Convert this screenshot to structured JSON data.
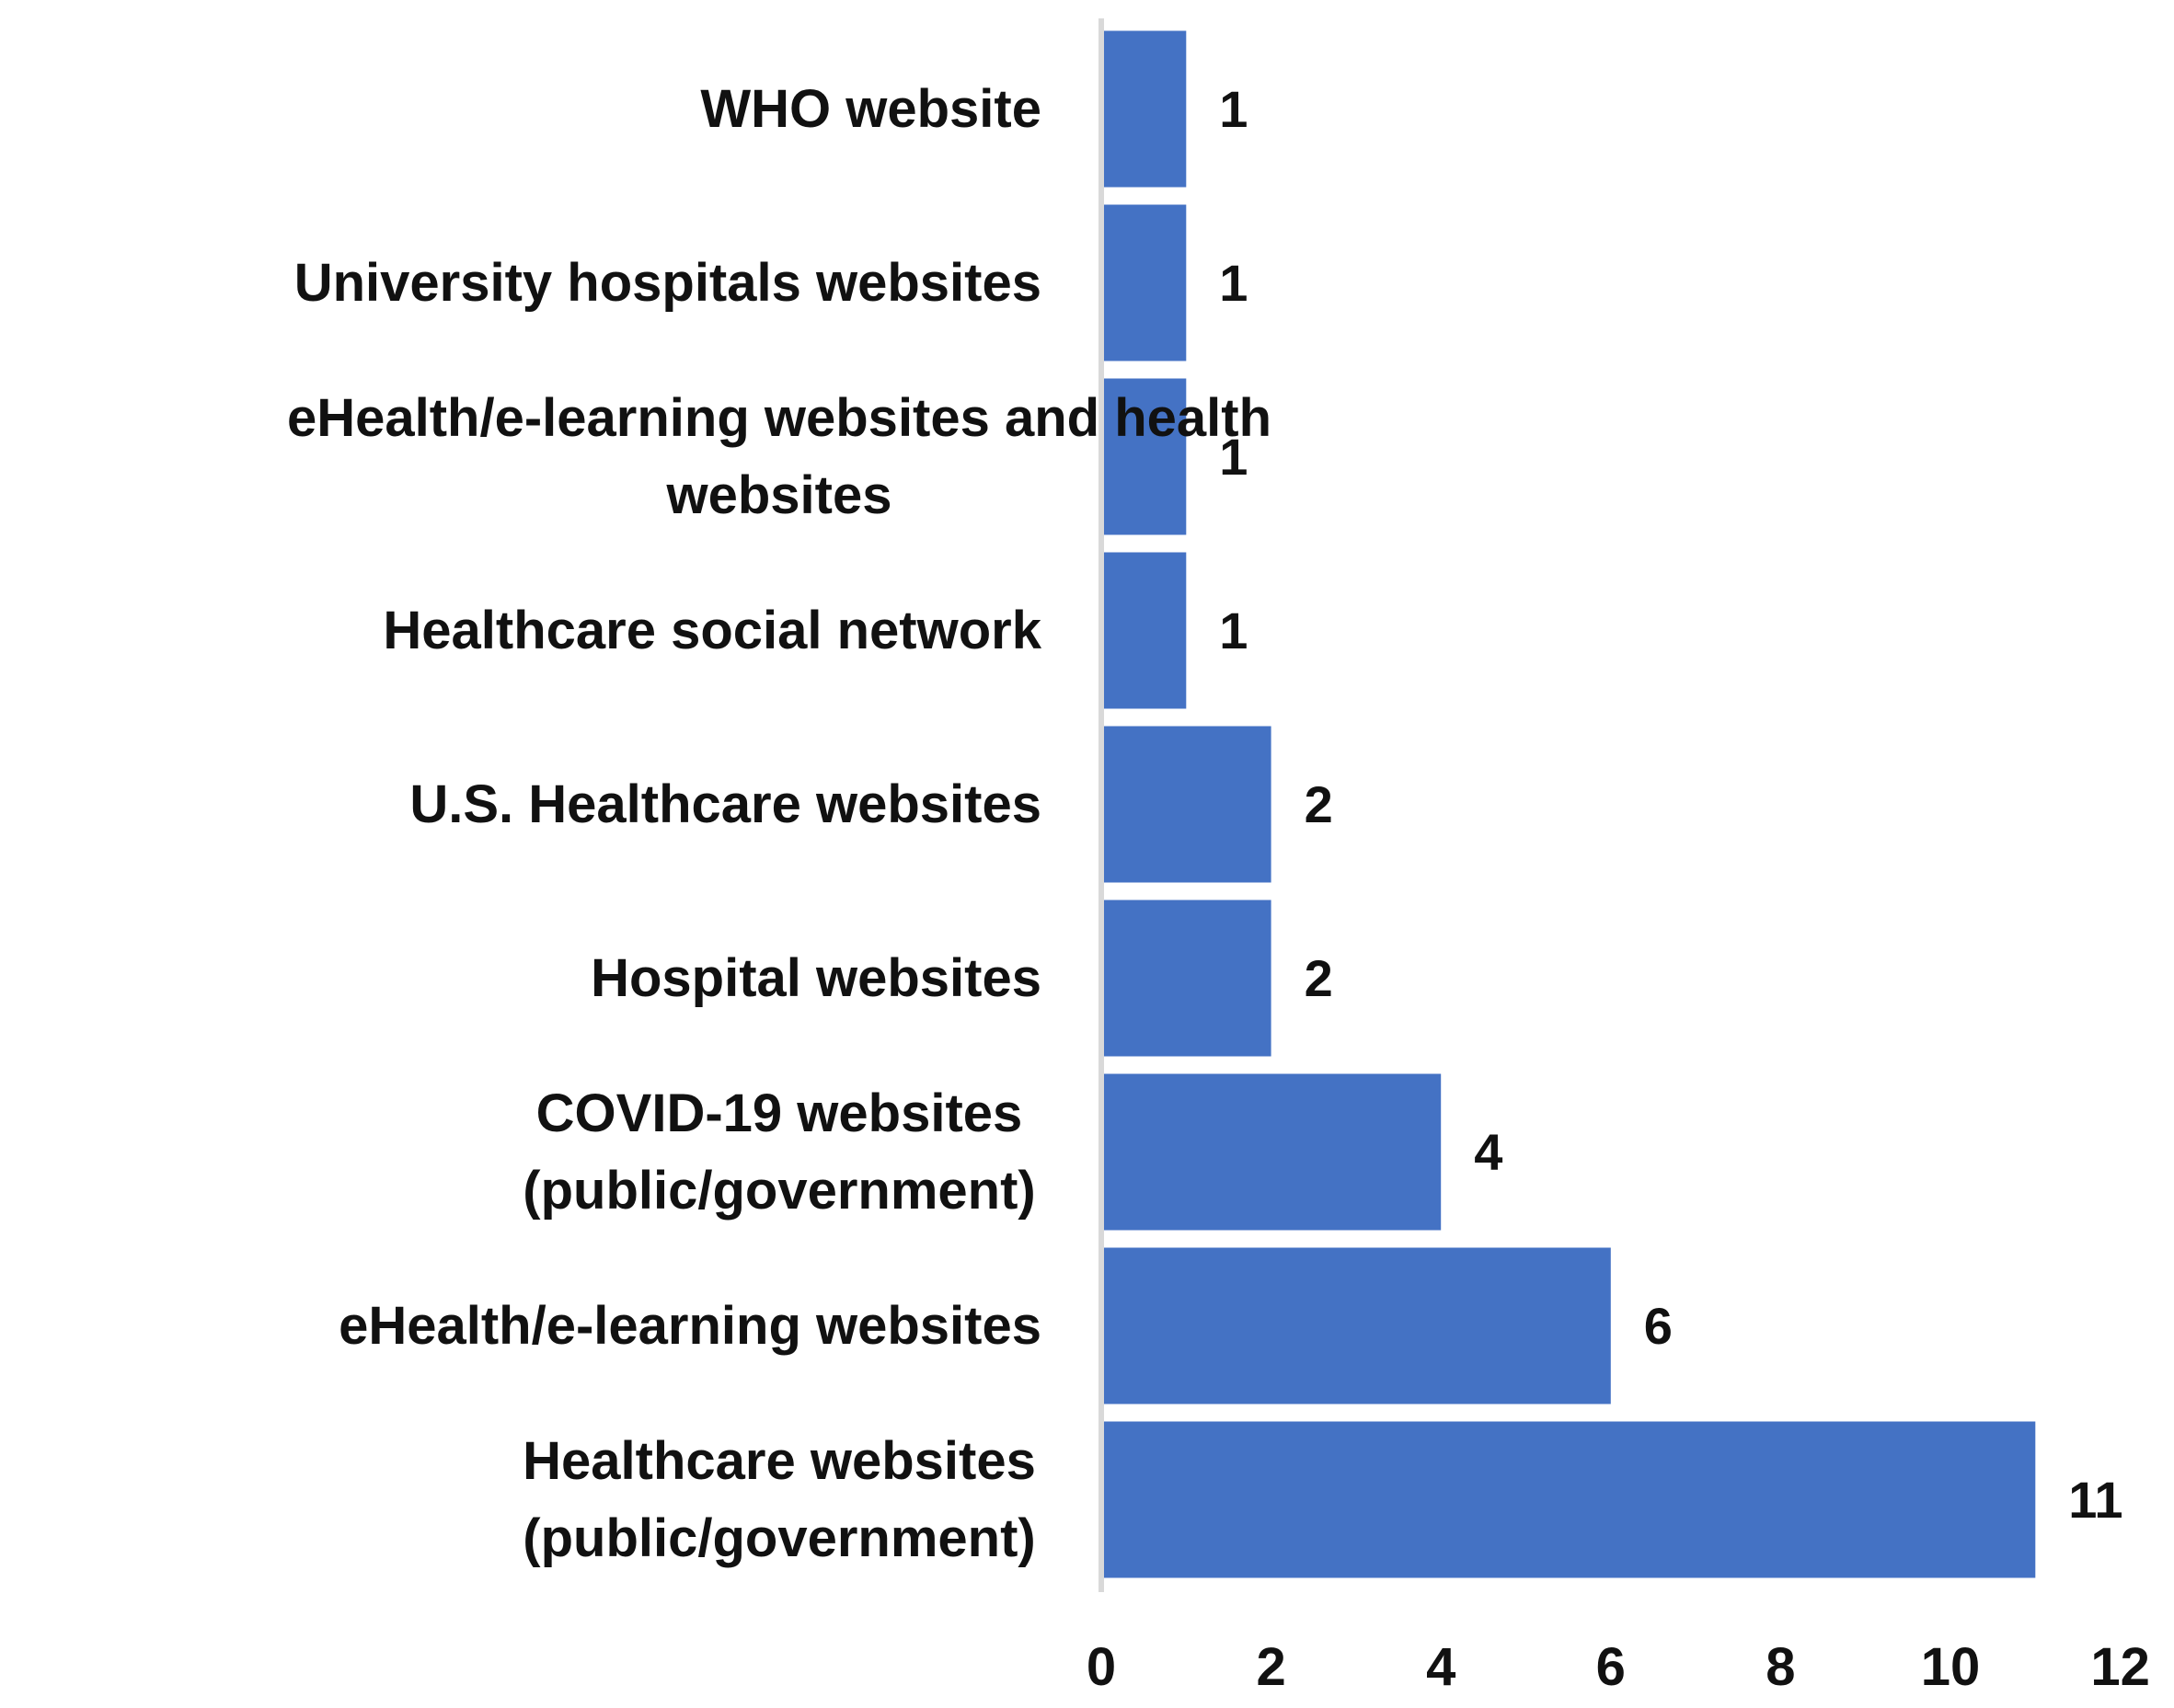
{
  "chart_data": {
    "type": "bar",
    "orientation": "horizontal",
    "title": "",
    "xlabel": "",
    "ylabel": "",
    "categories": [
      [
        "Healthcare websites",
        "(public/government)"
      ],
      [
        "eHealth/e-learning websites"
      ],
      [
        "COVID-19 websites",
        "(public/government)"
      ],
      [
        "Hospital websites"
      ],
      [
        "U.S. Healthcare websites"
      ],
      [
        "Healthcare social network"
      ],
      [
        "eHealth/e-learning websites and health",
        "websites"
      ],
      [
        "University hospitals websites"
      ],
      [
        "WHO website"
      ]
    ],
    "values": [
      11,
      6,
      4,
      2,
      2,
      1,
      1,
      1,
      1
    ],
    "data_labels": [
      "11",
      "6",
      "4",
      "2",
      "2",
      "1",
      "1",
      "1",
      "1"
    ],
    "xlim": [
      0,
      12
    ],
    "x_ticks": [
      "0",
      "2",
      "4",
      "6",
      "8",
      "10",
      "12"
    ],
    "grid": false,
    "legend": "none",
    "bar_color": "#4472C4",
    "axis_color": "#D9D9D9"
  }
}
